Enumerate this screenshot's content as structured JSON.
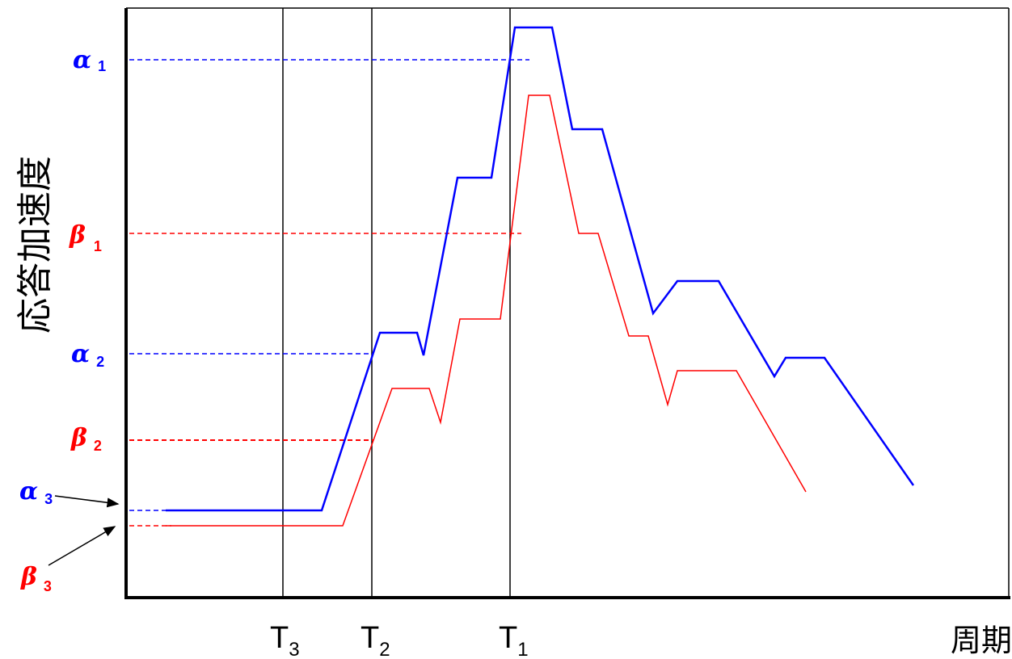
{
  "chart_data": {
    "type": "line",
    "title": "",
    "ylabel": "応答加速度",
    "xlabel": "周期",
    "x_ticks": [
      {
        "main": "T",
        "sub": "3"
      },
      {
        "main": "T",
        "sub": "2"
      },
      {
        "main": "T",
        "sub": "1"
      }
    ],
    "y_markers": [
      {
        "greek": "α",
        "sub": "1",
        "color": "#0000ff"
      },
      {
        "greek": "β",
        "sub": "1",
        "color": "#ff0000"
      },
      {
        "greek": "α",
        "sub": "2",
        "color": "#0000ff"
      },
      {
        "greek": "β",
        "sub": "2",
        "color": "#ff0000"
      },
      {
        "greek": "α",
        "sub": "3",
        "color": "#0000ff"
      },
      {
        "greek": "β",
        "sub": "3",
        "color": "#ff0000"
      }
    ],
    "series": [
      {
        "color": "#0000ff"
      },
      {
        "color": "#ff0000"
      }
    ],
    "grid": false,
    "legend": "none"
  }
}
